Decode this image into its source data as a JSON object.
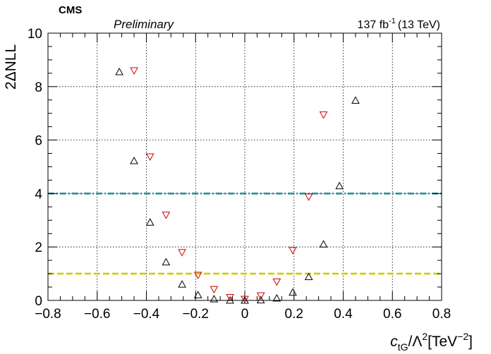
{
  "header": {
    "experiment": "CMS",
    "status": "Preliminary",
    "lumi_value": "137 fb",
    "lumi_exponent": "-1",
    "lumi_energy": "(13 TeV)"
  },
  "axes": {
    "ylabel": "2ΔNLL",
    "xlabel_main": "c",
    "xlabel_sub": "tG",
    "xlabel_mid": "/Λ",
    "xlabel_sup": "2",
    "xlabel_unit": "[TeV",
    "xlabel_unit_sup": "−2",
    "xlabel_close": "]"
  },
  "chart_data": {
    "type": "scatter",
    "title": "",
    "xlabel": "c_tG/Λ^2 [TeV^-2]",
    "ylabel": "2ΔNLL",
    "xlim": [
      -0.8,
      0.8
    ],
    "ylim": [
      0,
      10
    ],
    "grid": true,
    "x_ticks": [
      -0.8,
      -0.6,
      -0.4,
      -0.2,
      0,
      0.2,
      0.4,
      0.6,
      0.8
    ],
    "x_tick_labels": [
      "−0.8",
      "−0.6",
      "−0.4",
      "−0.2",
      "0",
      "0.2",
      "0.4",
      "0.6",
      "0.8"
    ],
    "y_ticks": [
      0,
      2,
      4,
      6,
      8,
      10
    ],
    "y_tick_labels": [
      "0",
      "2",
      "4",
      "6",
      "8",
      "10"
    ],
    "series": [
      {
        "marker": "triangle-up",
        "color": "#000000",
        "x": [
          -0.51,
          -0.45,
          -0.385,
          -0.32,
          -0.255,
          -0.19,
          -0.125,
          -0.06,
          0.0,
          0.065,
          0.13,
          0.195,
          0.26,
          0.32,
          0.385,
          0.45
        ],
        "y": [
          8.55,
          5.22,
          2.92,
          1.43,
          0.6,
          0.2,
          0.05,
          0.0,
          0.0,
          0.01,
          0.08,
          0.3,
          0.88,
          2.1,
          4.28,
          7.48
        ]
      },
      {
        "marker": "triangle-down",
        "color": "#cc0000",
        "x": [
          -0.45,
          -0.385,
          -0.32,
          -0.255,
          -0.19,
          -0.125,
          -0.06,
          0.0,
          0.065,
          0.13,
          0.195,
          0.26,
          0.32
        ],
        "y": [
          8.6,
          5.38,
          3.2,
          1.8,
          0.95,
          0.42,
          0.12,
          0.05,
          0.18,
          0.7,
          1.88,
          3.88,
          6.95
        ]
      }
    ],
    "reference_lines": [
      {
        "y": 1,
        "style": "dashed",
        "color": "#cccc00"
      },
      {
        "y": 4,
        "style": "dash-dot",
        "color": "#2a8f9a"
      }
    ]
  }
}
